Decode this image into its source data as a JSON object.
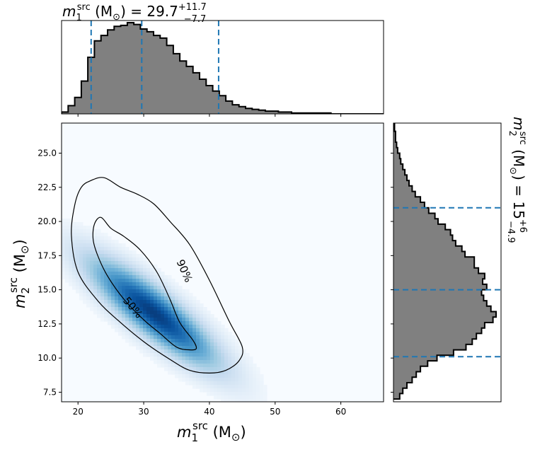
{
  "figure": {
    "top_title": {
      "var": "m",
      "sub": "1",
      "sup": "src",
      "unit": " (M",
      "unit_sub": "⊙",
      "eq": ") = 29.7",
      "plus": "+11.7",
      "minus": "−7.7"
    },
    "right_title": {
      "var": "m",
      "sub": "2",
      "sup": "src",
      "unit": " (M",
      "unit_sub": "⊙",
      "eq": ") = 15",
      "plus": "+6",
      "minus": "−4.9"
    },
    "xlabel": {
      "var": "m",
      "sub": "1",
      "sup": "src",
      "unit": " (M",
      "unit_sub": "⊙",
      "close": ")"
    },
    "ylabel": {
      "var": "m",
      "sub": "2",
      "sup": "src",
      "unit": " (M",
      "unit_sub": "⊙",
      "close": ")"
    },
    "contour_labels": [
      "90%",
      "50%"
    ]
  },
  "chart_data": [
    {
      "type": "heatmap",
      "subtype": "2d-density-with-contours",
      "colormap": "Blues",
      "xlim": [
        17.5,
        66.5
      ],
      "ylim": [
        6.8,
        27.2
      ],
      "xticks": [
        20,
        30,
        40,
        50,
        60
      ],
      "xtick_labels": [
        "20",
        "30",
        "40",
        "50",
        "60"
      ],
      "yticks": [
        7.5,
        10.0,
        12.5,
        15.0,
        17.5,
        20.0,
        22.5,
        25.0
      ],
      "ytick_labels": [
        "7.5",
        "10.0",
        "12.5",
        "15.0",
        "17.5",
        "20.0",
        "22.5",
        "25.0"
      ],
      "contours": [
        {
          "level": "90%",
          "points": [
            [
              20.5,
              22.5
            ],
            [
              22,
              23
            ],
            [
              24,
              23.2
            ],
            [
              26.5,
              22.5
            ],
            [
              29,
              22
            ],
            [
              31.5,
              21.3
            ],
            [
              34,
              20
            ],
            [
              37,
              18.3
            ],
            [
              40,
              15.7
            ],
            [
              43,
              12.7
            ],
            [
              45,
              10.8
            ],
            [
              44.5,
              9.8
            ],
            [
              42.5,
              9.1
            ],
            [
              40,
              8.9
            ],
            [
              37,
              9.1
            ],
            [
              34,
              9.9
            ],
            [
              30,
              11.2
            ],
            [
              26,
              12.8
            ],
            [
              23,
              14.2
            ],
            [
              20,
              16.3
            ],
            [
              19,
              19
            ],
            [
              19.5,
              21.2
            ]
          ]
        },
        {
          "level": "50%",
          "points": [
            [
              22.5,
              19.8
            ],
            [
              23.5,
              20.3
            ],
            [
              25,
              19.5
            ],
            [
              27,
              18.9
            ],
            [
              29.5,
              17.9
            ],
            [
              32,
              16.3
            ],
            [
              34,
              14.3
            ],
            [
              35.5,
              12.6
            ],
            [
              37.5,
              11.3
            ],
            [
              38,
              10.7
            ],
            [
              37,
              10.6
            ],
            [
              35,
              10.8
            ],
            [
              32.5,
              11.8
            ],
            [
              30,
              12.8
            ],
            [
              27,
              14.3
            ],
            [
              24.5,
              16
            ],
            [
              23,
              17.5
            ],
            [
              22.3,
              18.7
            ]
          ]
        }
      ],
      "density_peak": [
        32,
        12.8
      ]
    },
    {
      "type": "bar",
      "subtype": "step-histogram",
      "orientation": "vertical",
      "variable": "m1_src",
      "bin_width": 1.0,
      "x": [
        17.5,
        18.5,
        19.5,
        20.5,
        21.5,
        22.5,
        23.5,
        24.5,
        25.5,
        26.5,
        27.5,
        28.5,
        29.5,
        30.5,
        31.5,
        32.5,
        33.5,
        34.5,
        35.5,
        36.5,
        37.5,
        38.5,
        39.5,
        40.5,
        41.5,
        42.5,
        43.5,
        44.5,
        45.5,
        46.5,
        47.5,
        48.5,
        49.5,
        50.5,
        51.5,
        52.5,
        53.5,
        54.5,
        55.5,
        56.5,
        57.5,
        58.5,
        59.5,
        60.5,
        61.5,
        62.5,
        63.5,
        64.5,
        65.5
      ],
      "values": [
        0.02,
        0.09,
        0.18,
        0.36,
        0.62,
        0.8,
        0.86,
        0.92,
        0.96,
        0.97,
        1.0,
        0.98,
        0.93,
        0.9,
        0.86,
        0.83,
        0.75,
        0.66,
        0.58,
        0.52,
        0.45,
        0.38,
        0.31,
        0.25,
        0.2,
        0.14,
        0.1,
        0.08,
        0.06,
        0.05,
        0.04,
        0.03,
        0.03,
        0.02,
        0.02,
        0.01,
        0.01,
        0.01,
        0.01,
        0.01,
        0.01,
        0.0,
        0.0,
        0.0,
        0.0,
        0.0,
        0.0,
        0.0,
        0.0
      ],
      "quantile_lines": [
        22.0,
        29.7,
        41.4
      ]
    },
    {
      "type": "bar",
      "subtype": "step-histogram",
      "orientation": "horizontal",
      "variable": "m2_src",
      "bin_width": 0.4,
      "y": [
        7.0,
        7.4,
        7.8,
        8.2,
        8.6,
        9.0,
        9.4,
        9.8,
        10.2,
        10.6,
        11.0,
        11.4,
        11.8,
        12.2,
        12.6,
        13.0,
        13.4,
        13.8,
        14.2,
        14.6,
        15.0,
        15.4,
        15.8,
        16.2,
        16.6,
        17.0,
        17.4,
        17.8,
        18.2,
        18.6,
        19.0,
        19.4,
        19.8,
        20.2,
        20.6,
        21.0,
        21.4,
        21.8,
        22.2,
        22.6,
        23.0,
        23.4,
        23.8,
        24.2,
        24.6,
        25.0,
        25.4,
        25.8,
        26.2,
        26.6,
        27.0
      ],
      "values": [
        0.06,
        0.09,
        0.13,
        0.18,
        0.22,
        0.26,
        0.33,
        0.42,
        0.58,
        0.7,
        0.76,
        0.8,
        0.85,
        0.88,
        0.96,
        0.99,
        0.94,
        0.9,
        0.87,
        0.85,
        0.9,
        0.86,
        0.88,
        0.82,
        0.78,
        0.78,
        0.69,
        0.66,
        0.6,
        0.57,
        0.55,
        0.5,
        0.43,
        0.4,
        0.34,
        0.3,
        0.26,
        0.21,
        0.18,
        0.15,
        0.13,
        0.11,
        0.09,
        0.07,
        0.06,
        0.04,
        0.03,
        0.02,
        0.02,
        0.01,
        0.01
      ],
      "quantile_lines": [
        10.1,
        15.0,
        21.0
      ]
    }
  ],
  "colors": {
    "density": "Blues",
    "hist_fill": "#808080",
    "hist_edge": "#000000",
    "quantile": "#1f77b4",
    "contour": "#000000"
  }
}
